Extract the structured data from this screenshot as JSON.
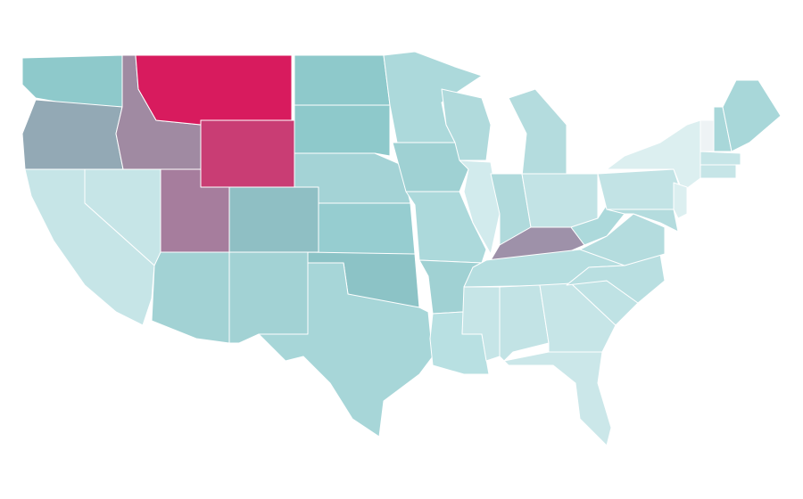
{
  "map": {
    "fills": [
      "#8ec9cb",
      "#93a9b5",
      "#a08aa2",
      "#d81b5e",
      "#c93d74",
      "#c6e5e7",
      "#c6e5e7",
      "#a67d9d",
      "#a2d2d4",
      "#8fbfc4",
      "#a2d2d4",
      "#8ec9cb",
      "#8ec9cb",
      "#a4d3d6",
      "#96cdd0",
      "#8cc3c6",
      "#a7d6d8",
      "#acd9db",
      "#9fd1d3",
      "#acd9db",
      "#a0d1d3",
      "#b8e0e2",
      "#b0dadc",
      "#d2ebed",
      "#b4dcde",
      "#b0dadc",
      "#c2e3e5",
      "#9e91a9",
      "#b6dee0",
      "#c6e5e7",
      "#c2e3e5",
      "#c6e5e7",
      "#cbe7e9",
      "#bfe2e4",
      "#b9dfe1",
      "#b4dcde",
      "#acd9db",
      "#c2e3e5",
      "#dceff0",
      "#dceff0",
      "#b4dcde",
      "#eef3f5",
      "#a8d7d9",
      "#a8d7d9",
      "#c6e5e7",
      "#c6e5e7"
    ]
  }
}
